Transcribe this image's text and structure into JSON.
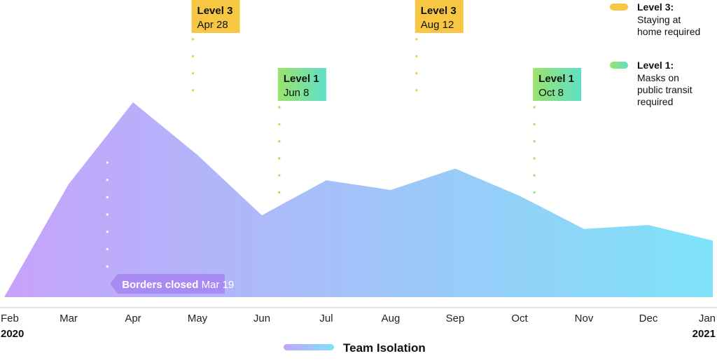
{
  "chart_data": {
    "type": "area",
    "x": [
      "Feb",
      "Mar",
      "Apr",
      "May",
      "Jun",
      "Jul",
      "Aug",
      "Sep",
      "Oct",
      "Nov",
      "Dec",
      "Jan"
    ],
    "x_years": {
      "start": "2020",
      "end": "2021"
    },
    "series": [
      {
        "name": "Team Isolation",
        "values": [
          0,
          58,
          100,
          73,
          42,
          60,
          55,
          66,
          52,
          35,
          37,
          29
        ]
      }
    ],
    "ylim": [
      0,
      100
    ],
    "grid": false,
    "colors": {
      "area_start": "#c7a2fa",
      "area_end": "#7ee3f8",
      "level3": "#f7c744",
      "level1_start": "#9be36b",
      "level1_end": "#5ee0c8",
      "borders": "#a98af2"
    },
    "levels": [
      {
        "level": "Level 3",
        "date": "Apr 28",
        "x": 2.93,
        "kind": "level3"
      },
      {
        "level": "Level 1",
        "date": "Jun 8",
        "x": 4.27,
        "kind": "level1"
      },
      {
        "level": "Level 3",
        "date": "Aug 12",
        "x": 6.4,
        "kind": "level3"
      },
      {
        "level": "Level 1",
        "date": "Oct 8",
        "x": 8.23,
        "kind": "level1"
      }
    ],
    "annotation": {
      "label": "Borders closed",
      "date": "Mar 19",
      "x": 1.6
    },
    "legend": [
      {
        "title": "Level 3:",
        "lines": [
          "Staying at",
          "home required"
        ],
        "kind": "level3"
      },
      {
        "title": "Level 1:",
        "lines": [
          "Masks on",
          "public transit",
          "required"
        ],
        "kind": "level1"
      }
    ],
    "legend_position": "top-right"
  }
}
